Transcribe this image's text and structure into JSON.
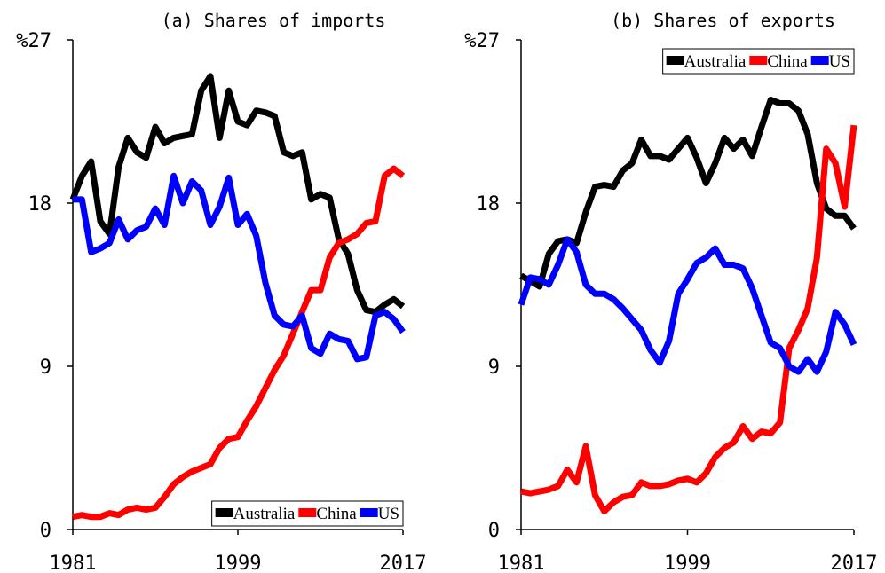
{
  "chart_data": [
    {
      "type": "line",
      "title": "(a) Shares of imports",
      "x": [
        1981,
        1982,
        1983,
        1984,
        1985,
        1986,
        1987,
        1988,
        1989,
        1990,
        1991,
        1992,
        1993,
        1994,
        1995,
        1996,
        1997,
        1998,
        1999,
        2000,
        2001,
        2002,
        2003,
        2004,
        2005,
        2006,
        2007,
        2008,
        2009,
        2010,
        2011,
        2012,
        2013,
        2014,
        2015,
        2016,
        2017
      ],
      "xlim": [
        1981,
        2017
      ],
      "xticks": [
        1981,
        1999,
        2017
      ],
      "ylim": [
        0,
        27
      ],
      "yticks": [
        0,
        9,
        18,
        {
          "value": 27,
          "label": "%27"
        }
      ],
      "legend": "lower right",
      "series": [
        {
          "name": "Australia",
          "color": "#000000",
          "values": [
            18.2,
            19.5,
            20.3,
            17.0,
            16.3,
            20.0,
            21.6,
            20.8,
            20.5,
            22.2,
            21.3,
            21.6,
            21.7,
            21.8,
            24.2,
            25.0,
            21.6,
            24.2,
            22.5,
            22.3,
            23.1,
            23.0,
            22.8,
            20.8,
            20.6,
            20.8,
            18.2,
            18.5,
            18.3,
            16.0,
            15.2,
            13.2,
            12.1,
            12.0,
            12.4,
            12.7,
            12.3
          ]
        },
        {
          "name": "China",
          "color": "#ff0000",
          "values": [
            0.7,
            0.8,
            0.7,
            0.7,
            0.9,
            0.8,
            1.1,
            1.2,
            1.1,
            1.2,
            1.8,
            2.5,
            2.9,
            3.2,
            3.4,
            3.6,
            4.5,
            5.0,
            5.1,
            6.0,
            6.8,
            7.8,
            8.8,
            9.6,
            10.8,
            12.0,
            13.2,
            13.2,
            15.0,
            15.8,
            16.0,
            16.3,
            16.9,
            17.0,
            19.5,
            19.9,
            19.5
          ]
        },
        {
          "name": "US",
          "color": "#0000ff",
          "values": [
            18.2,
            18.2,
            15.3,
            15.5,
            15.8,
            17.1,
            16.0,
            16.5,
            16.7,
            17.7,
            16.8,
            19.5,
            18.0,
            19.2,
            18.7,
            16.8,
            17.8,
            19.4,
            16.8,
            17.4,
            16.2,
            13.6,
            11.8,
            11.3,
            11.2,
            11.8,
            10.0,
            9.7,
            10.8,
            10.5,
            10.4,
            9.4,
            9.5,
            11.8,
            12.0,
            11.6,
            10.9
          ]
        }
      ]
    },
    {
      "type": "line",
      "title": "(b) Shares of exports",
      "x": [
        1981,
        1982,
        1983,
        1984,
        1985,
        1986,
        1987,
        1988,
        1989,
        1990,
        1991,
        1992,
        1993,
        1994,
        1995,
        1996,
        1997,
        1998,
        1999,
        2000,
        2001,
        2002,
        2003,
        2004,
        2005,
        2006,
        2007,
        2008,
        2009,
        2010,
        2011,
        2012,
        2013,
        2014,
        2015,
        2016,
        2017
      ],
      "xlim": [
        1981,
        2017
      ],
      "xticks": [
        1981,
        1999,
        2017
      ],
      "ylim": [
        0,
        27
      ],
      "yticks": [
        0,
        9,
        18,
        {
          "value": 27,
          "label": "%27"
        }
      ],
      "legend": "upper right",
      "series": [
        {
          "name": "Australia",
          "color": "#000000",
          "values": [
            14.0,
            13.7,
            13.4,
            15.2,
            15.9,
            16.0,
            15.8,
            17.5,
            18.9,
            19.0,
            18.9,
            19.8,
            20.2,
            21.5,
            20.6,
            20.6,
            20.4,
            21.0,
            21.6,
            20.5,
            19.1,
            20.2,
            21.6,
            21.0,
            21.5,
            20.6,
            22.2,
            23.7,
            23.5,
            23.5,
            23.1,
            21.8,
            19.1,
            17.7,
            17.3,
            17.3,
            16.6
          ]
        },
        {
          "name": "China",
          "color": "#ff0000",
          "values": [
            2.1,
            2.0,
            2.1,
            2.2,
            2.4,
            3.3,
            2.6,
            4.6,
            1.9,
            1.0,
            1.5,
            1.8,
            1.9,
            2.6,
            2.4,
            2.4,
            2.5,
            2.7,
            2.8,
            2.6,
            3.1,
            4.0,
            4.5,
            4.8,
            5.7,
            5.0,
            5.4,
            5.3,
            5.9,
            10.0,
            11.0,
            12.2,
            15.0,
            21.0,
            20.2,
            17.8,
            22.3
          ]
        },
        {
          "name": "US",
          "color": "#0000ff",
          "values": [
            12.4,
            13.9,
            13.8,
            13.5,
            14.6,
            16.0,
            15.3,
            13.5,
            13.0,
            13.0,
            12.7,
            12.2,
            11.6,
            11.0,
            9.9,
            9.2,
            10.4,
            13.0,
            13.8,
            14.7,
            15.0,
            15.5,
            14.6,
            14.6,
            14.4,
            13.3,
            11.8,
            10.3,
            10.0,
            9.0,
            8.7,
            9.4,
            8.7,
            9.8,
            12.0,
            11.3,
            10.2
          ]
        }
      ]
    }
  ]
}
